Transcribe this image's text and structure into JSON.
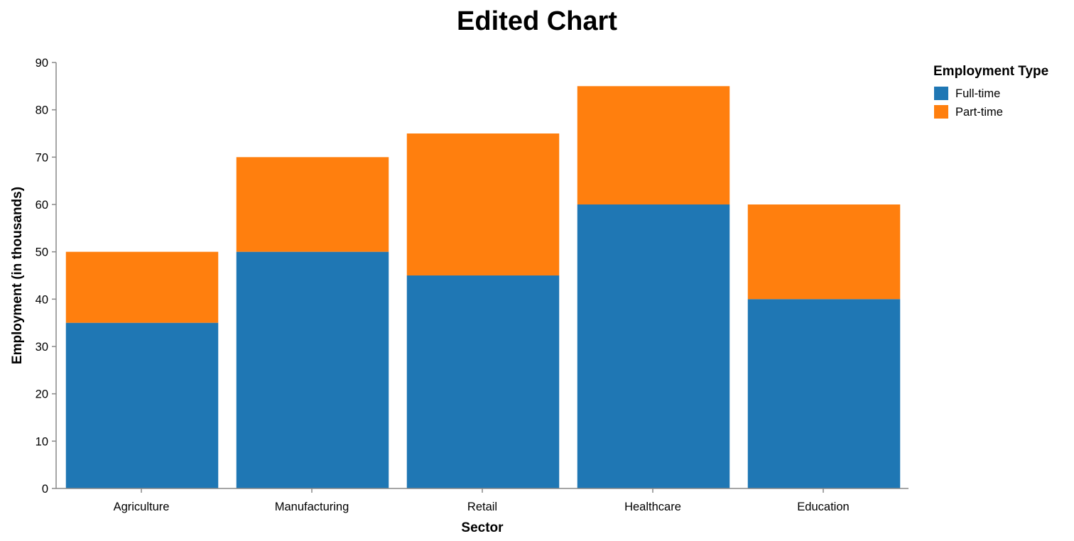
{
  "chart_data": {
    "type": "bar",
    "stacked": true,
    "title": "Edited Chart",
    "xlabel": "Sector",
    "ylabel": "Employment (in thousands)",
    "categories": [
      "Agriculture",
      "Manufacturing",
      "Retail",
      "Healthcare",
      "Education"
    ],
    "ylim": [
      0,
      90
    ],
    "yticks": [
      0,
      10,
      20,
      30,
      40,
      50,
      60,
      70,
      80,
      90
    ],
    "grid": false,
    "legend": {
      "title": "Employment Type",
      "placement": "top-right"
    },
    "series": [
      {
        "name": "Full-time",
        "color": "#1f77b4",
        "values": [
          35,
          50,
          45,
          60,
          40
        ]
      },
      {
        "name": "Part-time",
        "color": "#ff7f0e",
        "values": [
          15,
          20,
          30,
          25,
          20
        ]
      }
    ]
  }
}
